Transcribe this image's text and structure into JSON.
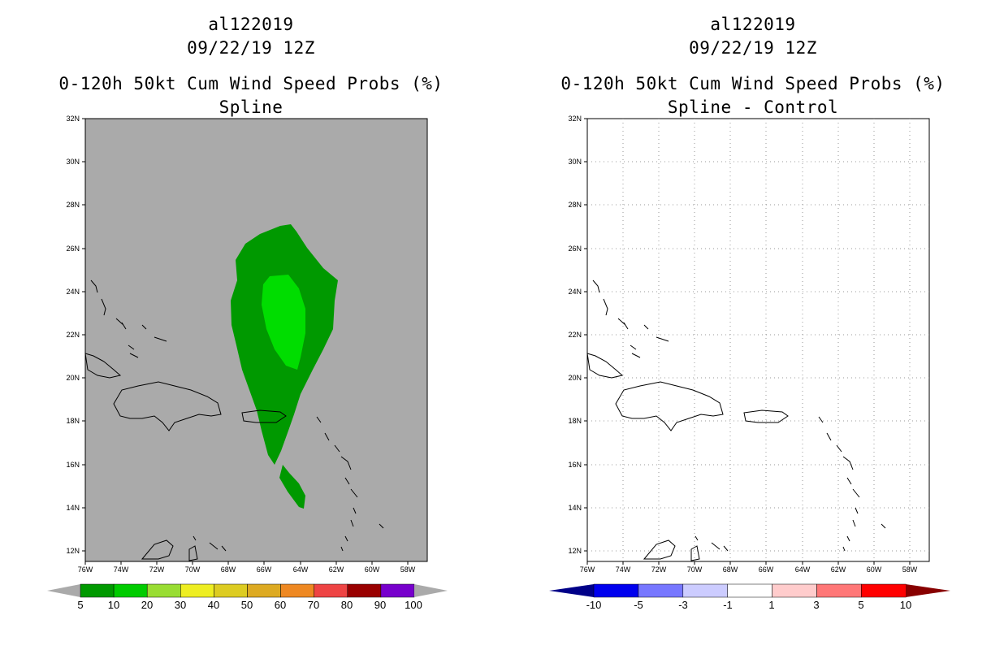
{
  "left_panel": {
    "storm_id": "al122019",
    "datetime": "09/22/19 12Z",
    "product": "0-120h 50kt Cum Wind Speed Probs (%)",
    "subtitle": "Spline",
    "background_color": "#aaaaaa",
    "colorbar_labels": [
      "5",
      "10",
      "20",
      "30",
      "40",
      "50",
      "60",
      "70",
      "80",
      "90",
      "100"
    ],
    "colorbar_colors": [
      "#009900",
      "#00cc00",
      "#99dd33",
      "#eeee22",
      "#ddcc22",
      "#ddaa22",
      "#ee8822",
      "#ee4444",
      "#990000",
      "#7700cc"
    ]
  },
  "right_panel": {
    "storm_id": "al122019",
    "datetime": "09/22/19 12Z",
    "product": "0-120h 50kt Cum Wind Speed Probs (%)",
    "subtitle": "Spline - Control",
    "colorbar_labels": [
      "-10",
      "-5",
      "-3",
      "-1",
      "1",
      "3",
      "5",
      "10"
    ],
    "colorbar_colors": [
      "#0000ee",
      "#7777ff",
      "#ccccff",
      "#ffffff",
      "#ffcccc",
      "#ff7777",
      "#ff0000"
    ]
  },
  "axes": {
    "lat_labels": [
      "32N",
      "30N",
      "28N",
      "26N",
      "24N",
      "22N",
      "20N",
      "18N",
      "16N",
      "14N",
      "12N"
    ],
    "lon_labels": [
      "76W",
      "74W",
      "72W",
      "70W",
      "68W",
      "66W",
      "64W",
      "62W",
      "60W",
      "58W"
    ]
  },
  "colors": {
    "outer_prob": "#009900",
    "inner_prob": "#00dd00",
    "land_outline": "#000000"
  }
}
